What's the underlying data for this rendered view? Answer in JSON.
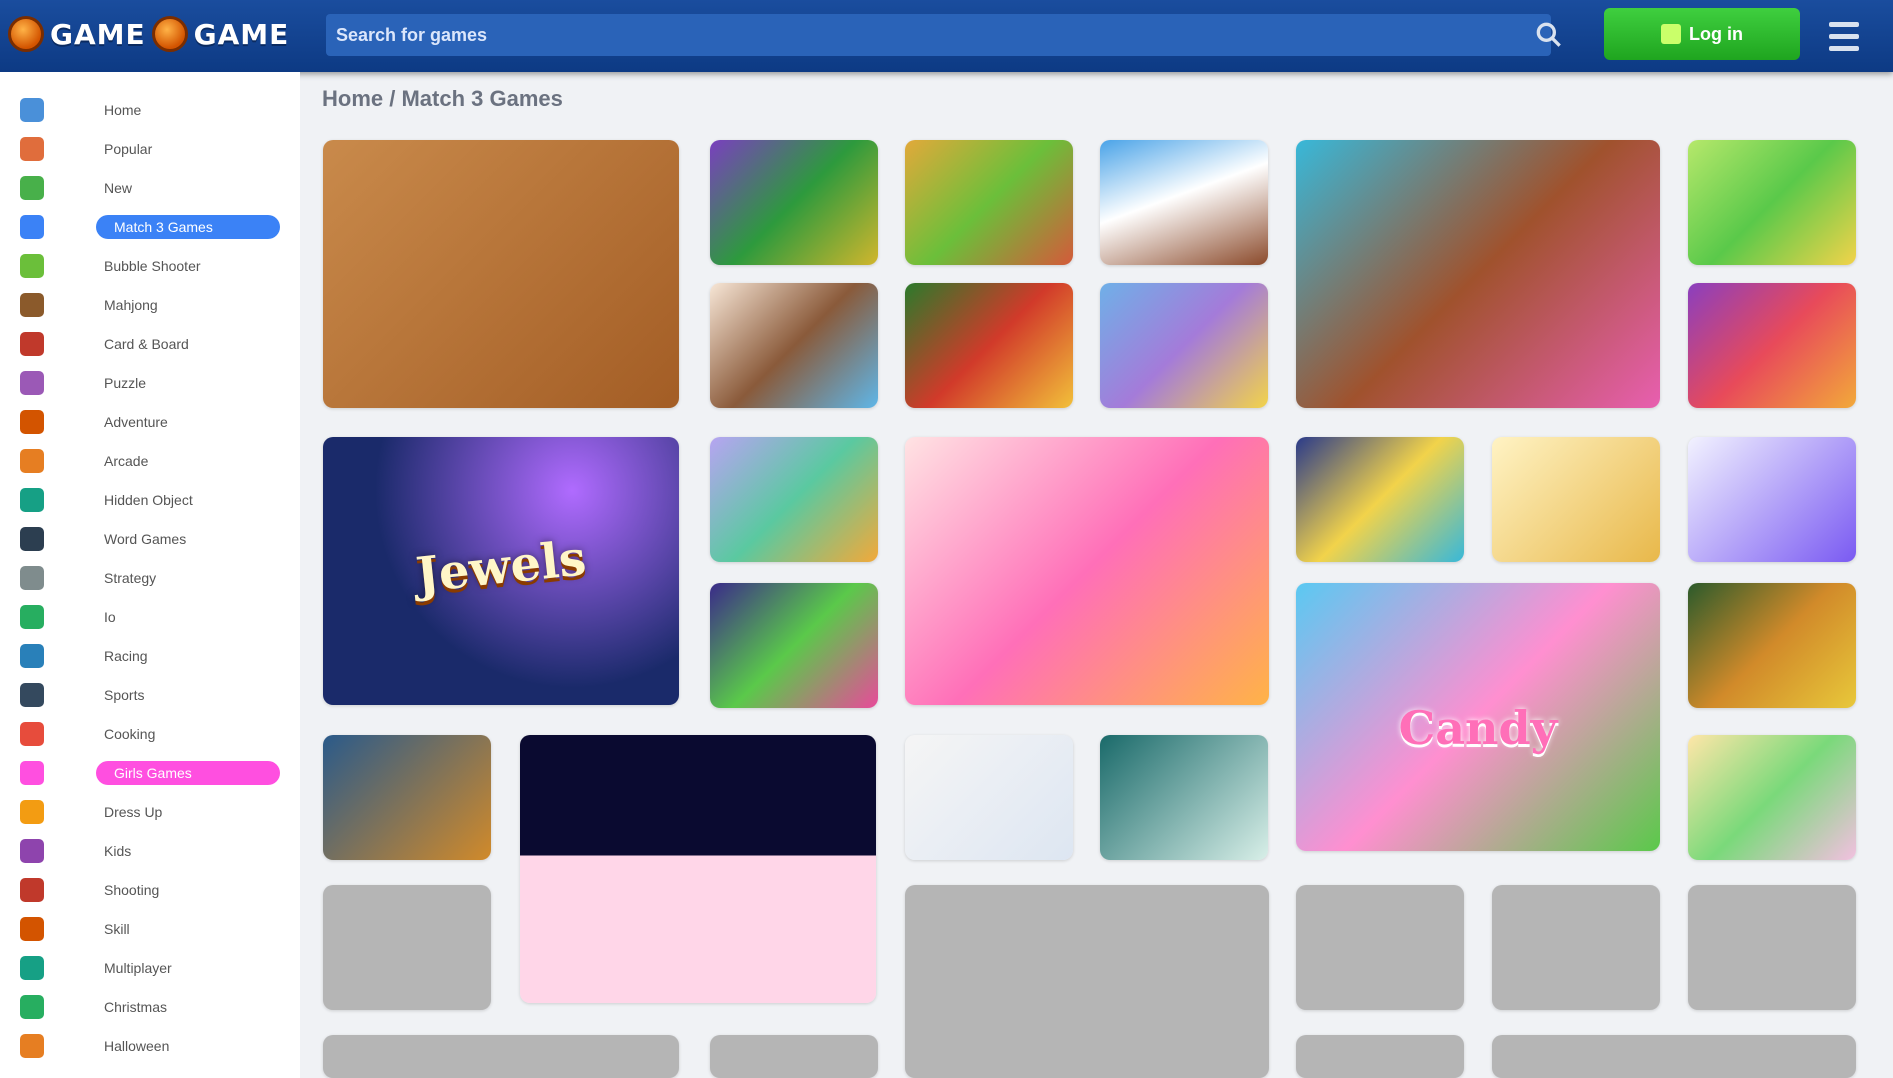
{
  "header": {
    "logo_left": "GAME",
    "logo_right": "GAME",
    "search_placeholder": "Search for games",
    "login_label": "Log in",
    "search_icon": "search-icon",
    "menu_icon": "hamburger-icon"
  },
  "breadcrumb": "Home / Match 3 Games",
  "sidebar": {
    "items": [
      {
        "label": "Home",
        "icon": "home-icon",
        "color": "#4a90d9"
      },
      {
        "label": "Popular",
        "icon": "popular-icon",
        "color": "#e06d3c"
      },
      {
        "label": "New",
        "icon": "new-icon",
        "color": "#48b04a"
      },
      {
        "label": "Match 3 Games",
        "icon": "match3-icon",
        "color": "#3b82f6",
        "active": "blue"
      },
      {
        "label": "Bubble Shooter",
        "icon": "bubble-icon",
        "color": "#6bbf3a"
      },
      {
        "label": "Mahjong",
        "icon": "mahjong-icon",
        "color": "#8b5a2b"
      },
      {
        "label": "Card & Board",
        "icon": "cards-icon",
        "color": "#c0392b"
      },
      {
        "label": "Puzzle",
        "icon": "puzzle-icon",
        "color": "#9b59b6"
      },
      {
        "label": "Adventure",
        "icon": "adventure-icon",
        "color": "#d35400"
      },
      {
        "label": "Arcade",
        "icon": "arcade-icon",
        "color": "#e67e22"
      },
      {
        "label": "Hidden Object",
        "icon": "hidden-icon",
        "color": "#16a085"
      },
      {
        "label": "Word Games",
        "icon": "word-icon",
        "color": "#2c3e50"
      },
      {
        "label": "Strategy",
        "icon": "strategy-icon",
        "color": "#7f8c8d"
      },
      {
        "label": "Io",
        "icon": "io-icon",
        "color": "#27ae60"
      },
      {
        "label": "Racing",
        "icon": "racing-icon",
        "color": "#2980b9"
      },
      {
        "label": "Sports",
        "icon": "sports-icon",
        "color": "#34495e"
      },
      {
        "label": "Cooking",
        "icon": "cooking-icon",
        "color": "#e74c3c"
      },
      {
        "label": "Girls Games",
        "icon": "girls-icon",
        "color": "#ff4fe0",
        "active": "pink"
      },
      {
        "label": "Dress Up",
        "icon": "dressup-icon",
        "color": "#f39c12"
      },
      {
        "label": "Kids",
        "icon": "kids-icon",
        "color": "#8e44ad"
      },
      {
        "label": "Shooting",
        "icon": "shooting-icon",
        "color": "#c0392b"
      },
      {
        "label": "Skill",
        "icon": "skill-icon",
        "color": "#d35400"
      },
      {
        "label": "Multiplayer",
        "icon": "multiplayer-icon",
        "color": "#16a085"
      },
      {
        "label": "Christmas",
        "icon": "christmas-icon",
        "color": "#27ae60"
      },
      {
        "label": "Halloween",
        "icon": "halloween-icon",
        "color": "#e67e22"
      }
    ]
  },
  "tiles": [
    {
      "name": "wood-block-puzzle",
      "title": "",
      "bg": "linear-gradient(135deg,#c98a4b,#a35d25)"
    },
    {
      "name": "jewel-match-1",
      "title": "",
      "bg": "linear-gradient(135deg,#7a3fbf,#2d9a3d,#d1b62d)"
    },
    {
      "name": "fruit-match",
      "title": "",
      "bg": "linear-gradient(135deg,#e2a93a,#6bbf3a,#d45a3a)"
    },
    {
      "name": "slide-adventure",
      "title": "",
      "bg": "linear-gradient(160deg,#4aa3e8,#ffffff 45%,#8b4a2b)"
    },
    {
      "name": "tropical-princess",
      "title": "",
      "bg": "linear-gradient(135deg,#38b8d9,#a0522d,#e85fb0)"
    },
    {
      "name": "jungle-match",
      "title": "",
      "bg": "linear-gradient(135deg,#b6e86b,#5ac94a,#f2d34a)"
    },
    {
      "name": "cooking-girl",
      "title": "",
      "bg": "linear-gradient(135deg,#f7e6d6,#8a5a3a,#5fb6e8)"
    },
    {
      "name": "candy-jewels",
      "title": "",
      "bg": "linear-gradient(135deg,#2b7a2b,#d13a2a,#f2c03a)"
    },
    {
      "name": "color-blocks",
      "title": "",
      "bg": "linear-gradient(135deg,#6fb0e8,#a47bd9,#f2d34a)"
    },
    {
      "name": "gem-quest",
      "title": "",
      "bg": "linear-gradient(135deg,#8a3fbf,#e84a5a,#f2a93a)"
    },
    {
      "name": "jewels-blitz",
      "title": "Jewels",
      "bg": "radial-gradient(circle at 70% 20%,#b06bff,#1a2a6a 60%)"
    },
    {
      "name": "bubble-match",
      "title": "",
      "bg": "linear-gradient(135deg,#b7a4f2,#5ac9a0,#f2a93a)"
    },
    {
      "name": "candy-girl",
      "title": "",
      "bg": "linear-gradient(135deg,#ffe3e3,#ff6fb8,#ffb347)"
    },
    {
      "name": "balloons",
      "title": "",
      "bg": "linear-gradient(135deg,#2a3a8a,#f2d34a,#38b8d9)"
    },
    {
      "name": "pastry-match",
      "title": "",
      "bg": "linear-gradient(135deg,#fff3c4,#e8b84a)"
    },
    {
      "name": "word-puzzle",
      "title": "",
      "bg": "linear-gradient(135deg,#f2f2ff,#7a5af2)"
    },
    {
      "name": "jewel-match-2",
      "title": "",
      "bg": "linear-gradient(135deg,#3a2a8a,#5ac94a,#e84a9a)"
    },
    {
      "name": "candy-land",
      "title": "Candy",
      "bg": "linear-gradient(135deg,#5ac9f2,#ff8fd0,#5ac94a)"
    },
    {
      "name": "autumn-match",
      "title": "",
      "bg": "linear-gradient(135deg,#2b5a2b,#d18a2a,#e8c83a)"
    },
    {
      "name": "pirate-match",
      "title": "",
      "bg": "linear-gradient(135deg,#2a5a8a,#d18a2a)"
    },
    {
      "name": "match-arena",
      "title": "",
      "bg": "linear-gradient(180deg,#0a0a30 45%,#ffd6e8 45%)"
    },
    {
      "name": "winter-match",
      "title": "",
      "bg": "linear-gradient(135deg,#f5f5f5,#dde6f2)"
    },
    {
      "name": "ocean-match",
      "title": "",
      "bg": "linear-gradient(135deg,#1a6a6a,#d8efe8)"
    },
    {
      "name": "flower-match",
      "title": "",
      "bg": "linear-gradient(135deg,#ffe6a8,#7ad97a,#f2c0e0)"
    }
  ]
}
